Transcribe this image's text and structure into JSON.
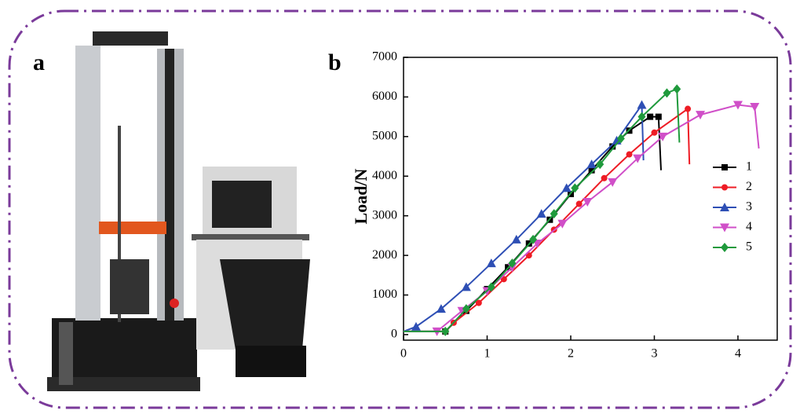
{
  "panel_labels": [
    "a",
    "b"
  ],
  "chart_data": {
    "type": "line",
    "ylabel": "Load/N",
    "xlim": [
      0,
      4.47
    ],
    "xticks": [
      0,
      1,
      2,
      3,
      4
    ],
    "ylim": [
      -140,
      7000
    ],
    "yticks": [
      0,
      1000,
      2000,
      3000,
      4000,
      5000,
      6000,
      7000
    ],
    "legend": "right",
    "series": [
      {
        "name": "1",
        "color": "#000000",
        "marker": "square",
        "x": [
          0,
          0.5,
          0.75,
          1.0,
          1.25,
          1.5,
          1.75,
          2.0,
          2.25,
          2.5,
          2.7,
          2.95,
          3.05,
          3.08
        ],
        "values": [
          80,
          80,
          600,
          1150,
          1700,
          2300,
          2900,
          3550,
          4150,
          4750,
          5150,
          5500,
          5500,
          4150
        ]
      },
      {
        "name": "2",
        "color": "#ee1c25",
        "marker": "circle",
        "x": [
          0,
          0.5,
          0.6,
          0.9,
          1.2,
          1.5,
          1.8,
          2.1,
          2.4,
          2.7,
          3.0,
          3.4,
          3.42
        ],
        "values": [
          80,
          80,
          300,
          800,
          1400,
          2000,
          2650,
          3300,
          3950,
          4550,
          5100,
          5700,
          4300
        ]
      },
      {
        "name": "3",
        "color": "#2e4fb5",
        "marker": "triangle-up",
        "x": [
          0,
          0.15,
          0.45,
          0.75,
          1.05,
          1.35,
          1.65,
          1.95,
          2.25,
          2.55,
          2.85,
          2.87
        ],
        "values": [
          80,
          200,
          650,
          1200,
          1800,
          2400,
          3050,
          3700,
          4300,
          4900,
          5800,
          4400
        ]
      },
      {
        "name": "4",
        "color": "#d04fc8",
        "marker": "triangle-down",
        "x": [
          0,
          0.4,
          0.7,
          1.0,
          1.3,
          1.6,
          1.9,
          2.2,
          2.5,
          2.8,
          3.1,
          3.55,
          4.0,
          4.2,
          4.25
        ],
        "values": [
          80,
          80,
          600,
          1100,
          1700,
          2300,
          2800,
          3350,
          3850,
          4450,
          5000,
          5550,
          5800,
          5750,
          4700
        ]
      },
      {
        "name": "5",
        "color": "#1f9a3c",
        "marker": "diamond",
        "x": [
          0,
          0.5,
          0.75,
          1.05,
          1.3,
          1.55,
          1.8,
          2.05,
          2.35,
          2.6,
          2.85,
          3.15,
          3.27,
          3.3
        ],
        "values": [
          80,
          80,
          650,
          1200,
          1800,
          2400,
          3050,
          3700,
          4300,
          4950,
          5500,
          6100,
          6200,
          4850
        ]
      }
    ]
  }
}
